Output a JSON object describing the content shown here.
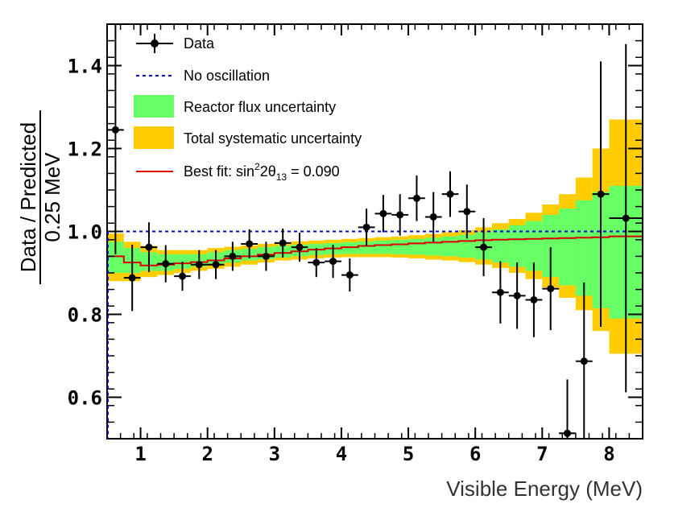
{
  "chart_data": {
    "type": "scatter",
    "xlabel": "Visible Energy (MeV)",
    "ylabel_numerator": "Data / Predicted",
    "ylabel_denominator": "0.25 MeV",
    "xlim": [
      0.5,
      8.5
    ],
    "ylim": [
      0.5,
      1.5
    ],
    "xticks": [
      1,
      2,
      3,
      4,
      5,
      6,
      7,
      8
    ],
    "yticks": [
      0.6,
      0.8,
      1.0,
      1.2,
      1.4
    ],
    "ytick_labels": [
      "0.6",
      "0.8",
      "1.0",
      "1.2",
      "1.4"
    ],
    "legend": {
      "placement": "top-left",
      "data": "Data",
      "no_osc": "No oscillation",
      "reactor": "Reactor flux uncertainty",
      "total": "Total systematic uncertainty",
      "bestfit_prefix": "Best fit: sin",
      "bestfit_sup": "2",
      "bestfit_mid": "2θ",
      "bestfit_sub": "13",
      "bestfit_suffix": " = 0.090"
    },
    "colors": {
      "data": "#000000",
      "no_osc": "#0000dd",
      "reactor": "#66ff66",
      "total": "#ffcc00",
      "bestfit": "#dd0000"
    },
    "no_oscillation_value": 1.0,
    "points": [
      {
        "x": 0.625,
        "y": 1.245,
        "err": 0.3
      },
      {
        "x": 0.875,
        "y": 0.888,
        "err": 0.08
      },
      {
        "x": 1.125,
        "y": 0.962,
        "err": 0.06
      },
      {
        "x": 1.375,
        "y": 0.922,
        "err": 0.045
      },
      {
        "x": 1.625,
        "y": 0.892,
        "err": 0.035
      },
      {
        "x": 1.875,
        "y": 0.92,
        "err": 0.035
      },
      {
        "x": 2.125,
        "y": 0.92,
        "err": 0.035
      },
      {
        "x": 2.375,
        "y": 0.94,
        "err": 0.035
      },
      {
        "x": 2.625,
        "y": 0.97,
        "err": 0.035
      },
      {
        "x": 2.875,
        "y": 0.94,
        "err": 0.035
      },
      {
        "x": 3.125,
        "y": 0.972,
        "err": 0.035
      },
      {
        "x": 3.375,
        "y": 0.962,
        "err": 0.035
      },
      {
        "x": 3.625,
        "y": 0.925,
        "err": 0.035
      },
      {
        "x": 3.875,
        "y": 0.928,
        "err": 0.04
      },
      {
        "x": 4.125,
        "y": 0.895,
        "err": 0.04
      },
      {
        "x": 4.375,
        "y": 1.01,
        "err": 0.045
      },
      {
        "x": 4.625,
        "y": 1.043,
        "err": 0.045
      },
      {
        "x": 4.875,
        "y": 1.04,
        "err": 0.05
      },
      {
        "x": 5.125,
        "y": 1.08,
        "err": 0.055
      },
      {
        "x": 5.375,
        "y": 1.035,
        "err": 0.06
      },
      {
        "x": 5.625,
        "y": 1.09,
        "err": 0.055
      },
      {
        "x": 5.875,
        "y": 1.048,
        "err": 0.065
      },
      {
        "x": 6.125,
        "y": 0.962,
        "err": 0.07
      },
      {
        "x": 6.375,
        "y": 0.853,
        "err": 0.075
      },
      {
        "x": 6.625,
        "y": 0.845,
        "err": 0.08
      },
      {
        "x": 6.875,
        "y": 0.835,
        "err": 0.09
      },
      {
        "x": 7.125,
        "y": 0.862,
        "err": 0.1
      },
      {
        "x": 7.375,
        "y": 0.513,
        "err": 0.13
      },
      {
        "x": 7.625,
        "y": 0.687,
        "err": 0.19
      },
      {
        "x": 7.875,
        "y": 1.09,
        "err": 0.32
      },
      {
        "x": 8.25,
        "y": 1.032,
        "err": 0.42,
        "xerr": 0.25
      }
    ],
    "bands": [
      {
        "x0": 0.5,
        "x1": 0.75,
        "t_lo": 0.88,
        "t_hi": 0.995,
        "r_lo": 0.9,
        "r_hi": 0.975
      },
      {
        "x0": 0.75,
        "x1": 1.0,
        "t_lo": 0.88,
        "t_hi": 0.975,
        "r_lo": 0.9,
        "r_hi": 0.96
      },
      {
        "x0": 1.0,
        "x1": 1.25,
        "t_lo": 0.89,
        "t_hi": 0.965,
        "r_lo": 0.905,
        "r_hi": 0.95
      },
      {
        "x0": 1.25,
        "x1": 1.5,
        "t_lo": 0.895,
        "t_hi": 0.955,
        "r_lo": 0.905,
        "r_hi": 0.945
      },
      {
        "x0": 1.5,
        "x1": 1.75,
        "t_lo": 0.9,
        "t_hi": 0.955,
        "r_lo": 0.91,
        "r_hi": 0.945
      },
      {
        "x0": 1.75,
        "x1": 2.0,
        "t_lo": 0.905,
        "t_hi": 0.955,
        "r_lo": 0.915,
        "r_hi": 0.945
      },
      {
        "x0": 2.0,
        "x1": 2.25,
        "t_lo": 0.91,
        "t_hi": 0.96,
        "r_lo": 0.92,
        "r_hi": 0.95
      },
      {
        "x0": 2.25,
        "x1": 2.5,
        "t_lo": 0.915,
        "t_hi": 0.963,
        "r_lo": 0.925,
        "r_hi": 0.955
      },
      {
        "x0": 2.5,
        "x1": 2.75,
        "t_lo": 0.92,
        "t_hi": 0.966,
        "r_lo": 0.93,
        "r_hi": 0.958
      },
      {
        "x0": 2.75,
        "x1": 3.0,
        "t_lo": 0.925,
        "t_hi": 0.97,
        "r_lo": 0.933,
        "r_hi": 0.962
      },
      {
        "x0": 3.0,
        "x1": 3.25,
        "t_lo": 0.93,
        "t_hi": 0.973,
        "r_lo": 0.937,
        "r_hi": 0.965
      },
      {
        "x0": 3.25,
        "x1": 3.5,
        "t_lo": 0.932,
        "t_hi": 0.976,
        "r_lo": 0.94,
        "r_hi": 0.968
      },
      {
        "x0": 3.5,
        "x1": 3.75,
        "t_lo": 0.935,
        "t_hi": 0.978,
        "r_lo": 0.943,
        "r_hi": 0.97
      },
      {
        "x0": 3.75,
        "x1": 4.0,
        "t_lo": 0.937,
        "t_hi": 0.98,
        "r_lo": 0.945,
        "r_hi": 0.972
      },
      {
        "x0": 4.0,
        "x1": 4.25,
        "t_lo": 0.938,
        "t_hi": 0.982,
        "r_lo": 0.946,
        "r_hi": 0.974
      },
      {
        "x0": 4.25,
        "x1": 4.5,
        "t_lo": 0.938,
        "t_hi": 0.984,
        "r_lo": 0.946,
        "r_hi": 0.976
      },
      {
        "x0": 4.5,
        "x1": 4.75,
        "t_lo": 0.938,
        "t_hi": 0.986,
        "r_lo": 0.946,
        "r_hi": 0.978
      },
      {
        "x0": 4.75,
        "x1": 5.0,
        "t_lo": 0.937,
        "t_hi": 0.988,
        "r_lo": 0.945,
        "r_hi": 0.98
      },
      {
        "x0": 5.0,
        "x1": 5.25,
        "t_lo": 0.935,
        "t_hi": 0.991,
        "r_lo": 0.944,
        "r_hi": 0.982
      },
      {
        "x0": 5.25,
        "x1": 5.5,
        "t_lo": 0.932,
        "t_hi": 0.994,
        "r_lo": 0.942,
        "r_hi": 0.985
      },
      {
        "x0": 5.5,
        "x1": 5.75,
        "t_lo": 0.93,
        "t_hi": 0.998,
        "r_lo": 0.94,
        "r_hi": 0.988
      },
      {
        "x0": 5.75,
        "x1": 6.0,
        "t_lo": 0.926,
        "t_hi": 1.003,
        "r_lo": 0.937,
        "r_hi": 0.992
      },
      {
        "x0": 6.0,
        "x1": 6.25,
        "t_lo": 0.92,
        "t_hi": 1.01,
        "r_lo": 0.932,
        "r_hi": 0.998
      },
      {
        "x0": 6.25,
        "x1": 6.5,
        "t_lo": 0.912,
        "t_hi": 1.02,
        "r_lo": 0.925,
        "r_hi": 1.005
      },
      {
        "x0": 6.5,
        "x1": 6.75,
        "t_lo": 0.9,
        "t_hi": 1.03,
        "r_lo": 0.915,
        "r_hi": 1.015
      },
      {
        "x0": 6.75,
        "x1": 7.0,
        "t_lo": 0.885,
        "t_hi": 1.045,
        "r_lo": 0.905,
        "r_hi": 1.025
      },
      {
        "x0": 7.0,
        "x1": 7.25,
        "t_lo": 0.865,
        "t_hi": 1.065,
        "r_lo": 0.89,
        "r_hi": 1.04
      },
      {
        "x0": 7.25,
        "x1": 7.5,
        "t_lo": 0.84,
        "t_hi": 1.09,
        "r_lo": 0.87,
        "r_hi": 1.055
      },
      {
        "x0": 7.5,
        "x1": 7.75,
        "t_lo": 0.81,
        "t_hi": 1.13,
        "r_lo": 0.845,
        "r_hi": 1.075
      },
      {
        "x0": 7.75,
        "x1": 8.0,
        "t_lo": 0.76,
        "t_hi": 1.2,
        "r_lo": 0.815,
        "r_hi": 1.095
      },
      {
        "x0": 8.0,
        "x1": 8.5,
        "t_lo": 0.705,
        "t_hi": 1.27,
        "r_lo": 0.79,
        "r_hi": 1.11
      }
    ],
    "bestfit": [
      {
        "x0": 0.5,
        "x1": 0.75,
        "y": 0.94
      },
      {
        "x0": 0.75,
        "x1": 1.0,
        "y": 0.925
      },
      {
        "x0": 1.0,
        "x1": 1.25,
        "y": 0.918
      },
      {
        "x0": 1.25,
        "x1": 1.5,
        "y": 0.92
      },
      {
        "x0": 1.5,
        "x1": 1.75,
        "y": 0.923
      },
      {
        "x0": 1.75,
        "x1": 2.0,
        "y": 0.926
      },
      {
        "x0": 2.0,
        "x1": 2.25,
        "y": 0.93
      },
      {
        "x0": 2.25,
        "x1": 2.5,
        "y": 0.935
      },
      {
        "x0": 2.5,
        "x1": 2.75,
        "y": 0.94
      },
      {
        "x0": 2.75,
        "x1": 3.0,
        "y": 0.944
      },
      {
        "x0": 3.0,
        "x1": 3.25,
        "y": 0.948
      },
      {
        "x0": 3.25,
        "x1": 3.5,
        "y": 0.952
      },
      {
        "x0": 3.5,
        "x1": 3.75,
        "y": 0.956
      },
      {
        "x0": 3.75,
        "x1": 4.0,
        "y": 0.959
      },
      {
        "x0": 4.0,
        "x1": 4.25,
        "y": 0.962
      },
      {
        "x0": 4.25,
        "x1": 4.5,
        "y": 0.965
      },
      {
        "x0": 4.5,
        "x1": 4.75,
        "y": 0.967
      },
      {
        "x0": 4.75,
        "x1": 5.0,
        "y": 0.969
      },
      {
        "x0": 5.0,
        "x1": 5.25,
        "y": 0.971
      },
      {
        "x0": 5.25,
        "x1": 5.5,
        "y": 0.973
      },
      {
        "x0": 5.5,
        "x1": 5.75,
        "y": 0.975
      },
      {
        "x0": 5.75,
        "x1": 6.0,
        "y": 0.977
      },
      {
        "x0": 6.0,
        "x1": 6.25,
        "y": 0.979
      },
      {
        "x0": 6.25,
        "x1": 6.5,
        "y": 0.98
      },
      {
        "x0": 6.5,
        "x1": 6.75,
        "y": 0.981
      },
      {
        "x0": 6.75,
        "x1": 7.0,
        "y": 0.982
      },
      {
        "x0": 7.0,
        "x1": 7.25,
        "y": 0.983
      },
      {
        "x0": 7.25,
        "x1": 7.5,
        "y": 0.984
      },
      {
        "x0": 7.5,
        "x1": 7.75,
        "y": 0.985
      },
      {
        "x0": 7.75,
        "x1": 8.0,
        "y": 0.986
      },
      {
        "x0": 8.0,
        "x1": 8.5,
        "y": 0.988
      }
    ]
  }
}
